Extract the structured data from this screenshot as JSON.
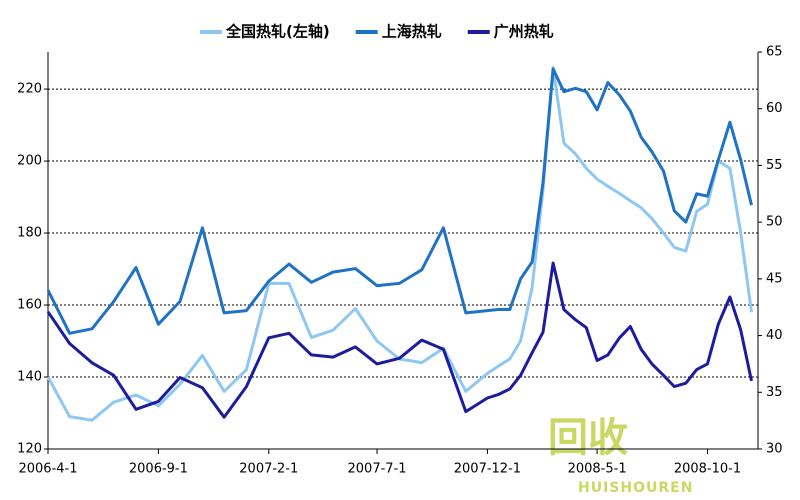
{
  "chart_data": {
    "type": "line",
    "x": [
      "2006-4-1",
      "2006-5-1",
      "2006-6-1",
      "2006-7-1",
      "2006-8-1",
      "2006-9-1",
      "2006-10-1",
      "2006-11-1",
      "2006-12-1",
      "2007-1-1",
      "2007-2-1",
      "2007-3-1",
      "2007-4-1",
      "2007-5-1",
      "2007-6-1",
      "2007-7-1",
      "2007-8-1",
      "2007-9-1",
      "2007-10-1",
      "2007-11-1",
      "2007-12-1",
      "2007-12-16",
      "2008-1-1",
      "2008-1-16",
      "2008-2-1",
      "2008-2-16",
      "2008-3-1",
      "2008-3-16",
      "2008-4-1",
      "2008-4-16",
      "2008-5-1",
      "2008-5-16",
      "2008-6-1",
      "2008-6-16",
      "2008-7-1",
      "2008-7-16",
      "2008-8-1",
      "2008-8-16",
      "2008-9-1",
      "2008-9-16",
      "2008-10-1",
      "2008-10-16",
      "2008-11-1",
      "2008-11-16",
      "2008-12-1"
    ],
    "series": [
      {
        "name": "全国热轧(左轴)",
        "color": "#8ec8f2",
        "values": [
          140,
          129,
          128,
          133,
          135,
          132,
          138,
          146,
          136,
          142,
          166,
          166,
          151,
          153,
          159,
          150,
          145,
          144,
          148,
          136,
          141,
          143,
          145,
          150,
          165,
          192,
          226,
          205,
          202,
          198,
          195,
          193,
          191,
          189,
          187,
          184,
          180,
          176,
          175,
          186,
          188,
          200,
          198,
          180,
          158
        ]
      },
      {
        "name": "上海热轧",
        "color": "#1f72c4",
        "axis": "y2",
        "values": [
          44,
          40.2,
          40.6,
          43,
          46,
          41,
          43,
          49.5,
          42,
          42.2,
          44.8,
          46.3,
          44.7,
          45.6,
          45.9,
          44.4,
          44.6,
          45.8,
          49.5,
          42,
          42.2,
          42.3,
          42.3,
          45,
          46.5,
          53.5,
          63.5,
          61.5,
          61.8,
          61.5,
          59.9,
          62.3,
          61.2,
          59.8,
          57.5,
          56.2,
          54.5,
          51,
          50,
          52.5,
          52.3,
          55.5,
          58.8,
          55.5,
          51.5
        ]
      },
      {
        "name": "广州热轧",
        "color": "#1c1c9e",
        "axis": "y2",
        "values": [
          42.1,
          39.3,
          37.6,
          36.5,
          33.5,
          34.2,
          36.3,
          35.4,
          32.8,
          35.5,
          39.8,
          40.2,
          38.3,
          38.1,
          39,
          37.5,
          38,
          39.6,
          38.8,
          33.3,
          34.5,
          34.8,
          35.3,
          36.5,
          38.5,
          40.3,
          46.4,
          42.3,
          41.4,
          40.7,
          37.8,
          38.3,
          39.8,
          40.8,
          38.8,
          37.5,
          36.5,
          35.5,
          35.8,
          37,
          37.5,
          41,
          43.4,
          40.5,
          36
        ]
      }
    ],
    "xlim": [
      "2006-4-1",
      "2008-12-10"
    ],
    "xticks": [
      "2006-4-1",
      "2006-9-1",
      "2007-2-1",
      "2007-7-1",
      "2007-12-1",
      "2008-5-1",
      "2008-10-1"
    ],
    "ylim": [
      120,
      230.3
    ],
    "yticks": [
      120,
      140,
      160,
      180,
      200,
      220
    ],
    "y2lim": [
      30,
      65
    ],
    "y2ticks": [
      30,
      35,
      40,
      45,
      50,
      55,
      60,
      65
    ],
    "grid": true,
    "legend": "top"
  },
  "watermark": [
    "回收",
    "HUISHOUREN"
  ]
}
